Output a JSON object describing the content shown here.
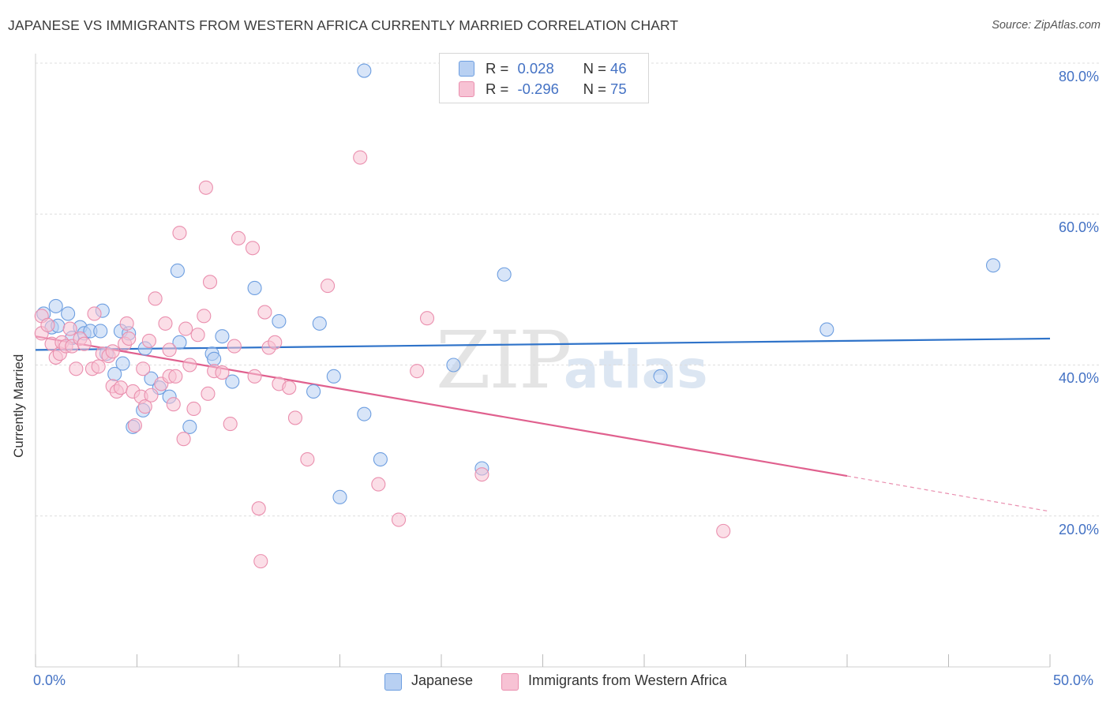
{
  "title": "JAPANESE VS IMMIGRANTS FROM WESTERN AFRICA CURRENTLY MARRIED CORRELATION CHART",
  "source": "Source: ZipAtlas.com",
  "watermark": {
    "zip": "ZIP",
    "atlas": "atlas"
  },
  "legend": {
    "row1": {
      "r_label": "R =",
      "r_value": "0.028",
      "n_label": "N =",
      "n_value": "46"
    },
    "row2": {
      "r_label": "R =",
      "r_value": "-0.296",
      "n_label": "N =",
      "n_value": "75"
    }
  },
  "colors": {
    "blue_fill": "#b8d0f2",
    "blue_stroke": "#6d9ee0",
    "blue_line": "#2f73c9",
    "pink_fill": "#f7c2d4",
    "pink_stroke": "#ea8fae",
    "pink_line": "#e0608e",
    "tick_text": "#4472c4"
  },
  "chart_data": {
    "type": "scatter",
    "title": "JAPANESE VS IMMIGRANTS FROM WESTERN AFRICA CURRENTLY MARRIED CORRELATION CHART",
    "ylabel": "Currently Married",
    "xlim": [
      0,
      50
    ],
    "ylim": [
      0,
      80
    ],
    "x_tick_labels": [
      "0.0%",
      "50.0%"
    ],
    "y_ticks": [
      20,
      40,
      60,
      80
    ],
    "y_tick_labels": [
      "20.0%",
      "40.0%",
      "60.0%",
      "80.0%"
    ],
    "grid": true,
    "legend_placement": "top-center",
    "series": [
      {
        "name": "Japanese",
        "r": "0.028",
        "n": "46",
        "trend": {
          "x": [
            0,
            50
          ],
          "y": [
            42.0,
            43.5
          ]
        },
        "points": [
          [
            0.4,
            46.8
          ],
          [
            0.8,
            45.0
          ],
          [
            1.0,
            47.8
          ],
          [
            1.1,
            45.2
          ],
          [
            1.6,
            46.8
          ],
          [
            1.8,
            43.6
          ],
          [
            2.2,
            45.0
          ],
          [
            2.4,
            44.2
          ],
          [
            2.7,
            44.5
          ],
          [
            3.2,
            44.5
          ],
          [
            3.3,
            47.2
          ],
          [
            3.5,
            41.5
          ],
          [
            3.9,
            38.8
          ],
          [
            4.2,
            44.5
          ],
          [
            4.3,
            40.2
          ],
          [
            4.6,
            44.2
          ],
          [
            4.8,
            31.8
          ],
          [
            5.3,
            34.0
          ],
          [
            5.4,
            42.2
          ],
          [
            5.7,
            38.2
          ],
          [
            6.1,
            37.0
          ],
          [
            6.6,
            35.8
          ],
          [
            7.0,
            52.5
          ],
          [
            7.1,
            43.0
          ],
          [
            7.6,
            31.8
          ],
          [
            8.7,
            41.5
          ],
          [
            8.8,
            40.8
          ],
          [
            9.2,
            43.8
          ],
          [
            9.7,
            37.8
          ],
          [
            10.8,
            50.2
          ],
          [
            12.0,
            45.8
          ],
          [
            13.7,
            36.5
          ],
          [
            14.0,
            45.5
          ],
          [
            14.7,
            38.5
          ],
          [
            15.0,
            22.5
          ],
          [
            16.2,
            79.0
          ],
          [
            16.2,
            33.5
          ],
          [
            17.0,
            27.5
          ],
          [
            20.6,
            40.0
          ],
          [
            22.0,
            26.3
          ],
          [
            23.1,
            52.0
          ],
          [
            30.8,
            38.5
          ],
          [
            39.0,
            44.7
          ],
          [
            47.2,
            53.2
          ]
        ]
      },
      {
        "name": "Immigrants from Western Africa",
        "r": "-0.296",
        "n": "75",
        "trend": {
          "x": [
            0,
            40
          ],
          "y": [
            43.8,
            25.3
          ]
        },
        "trend_dashed": {
          "x": [
            40,
            50
          ],
          "y": [
            25.3,
            20.6
          ]
        },
        "points": [
          [
            0.3,
            46.5
          ],
          [
            0.3,
            44.2
          ],
          [
            0.6,
            45.3
          ],
          [
            0.8,
            42.8
          ],
          [
            1.0,
            41.0
          ],
          [
            1.2,
            41.5
          ],
          [
            1.3,
            43.0
          ],
          [
            1.5,
            42.5
          ],
          [
            1.7,
            44.8
          ],
          [
            1.8,
            42.5
          ],
          [
            2.0,
            39.5
          ],
          [
            2.2,
            43.5
          ],
          [
            2.4,
            42.8
          ],
          [
            2.8,
            39.5
          ],
          [
            2.9,
            46.8
          ],
          [
            3.1,
            39.8
          ],
          [
            3.3,
            41.5
          ],
          [
            3.6,
            41.2
          ],
          [
            3.8,
            41.8
          ],
          [
            3.8,
            37.2
          ],
          [
            4.0,
            36.5
          ],
          [
            4.2,
            37.0
          ],
          [
            4.4,
            42.8
          ],
          [
            4.5,
            45.5
          ],
          [
            4.6,
            43.5
          ],
          [
            4.8,
            36.5
          ],
          [
            4.9,
            32.0
          ],
          [
            5.2,
            35.8
          ],
          [
            5.3,
            39.5
          ],
          [
            5.4,
            34.5
          ],
          [
            5.6,
            43.2
          ],
          [
            5.7,
            36.0
          ],
          [
            5.9,
            48.8
          ],
          [
            6.2,
            37.5
          ],
          [
            6.4,
            45.5
          ],
          [
            6.6,
            38.5
          ],
          [
            6.6,
            42.0
          ],
          [
            6.8,
            34.8
          ],
          [
            6.9,
            38.5
          ],
          [
            7.1,
            57.5
          ],
          [
            7.3,
            30.2
          ],
          [
            7.4,
            44.8
          ],
          [
            7.6,
            40.0
          ],
          [
            7.8,
            34.2
          ],
          [
            8.0,
            44.0
          ],
          [
            8.3,
            46.5
          ],
          [
            8.4,
            63.5
          ],
          [
            8.5,
            36.2
          ],
          [
            8.6,
            51.0
          ],
          [
            8.8,
            39.2
          ],
          [
            9.2,
            39.0
          ],
          [
            9.6,
            32.2
          ],
          [
            9.8,
            42.5
          ],
          [
            10.0,
            56.8
          ],
          [
            10.7,
            55.5
          ],
          [
            10.8,
            38.5
          ],
          [
            11.0,
            21.0
          ],
          [
            11.1,
            14.0
          ],
          [
            11.3,
            47.0
          ],
          [
            11.5,
            42.3
          ],
          [
            11.8,
            43.0
          ],
          [
            12.0,
            37.5
          ],
          [
            12.5,
            37.0
          ],
          [
            12.8,
            33.0
          ],
          [
            13.4,
            27.5
          ],
          [
            14.4,
            50.5
          ],
          [
            16.0,
            67.5
          ],
          [
            16.9,
            24.2
          ],
          [
            17.9,
            19.5
          ],
          [
            18.8,
            39.2
          ],
          [
            19.3,
            46.2
          ],
          [
            22.0,
            25.5
          ],
          [
            33.9,
            18.0
          ]
        ]
      }
    ]
  },
  "bottom_legend": {
    "item1": "Japanese",
    "item2": "Immigrants from Western Africa"
  }
}
